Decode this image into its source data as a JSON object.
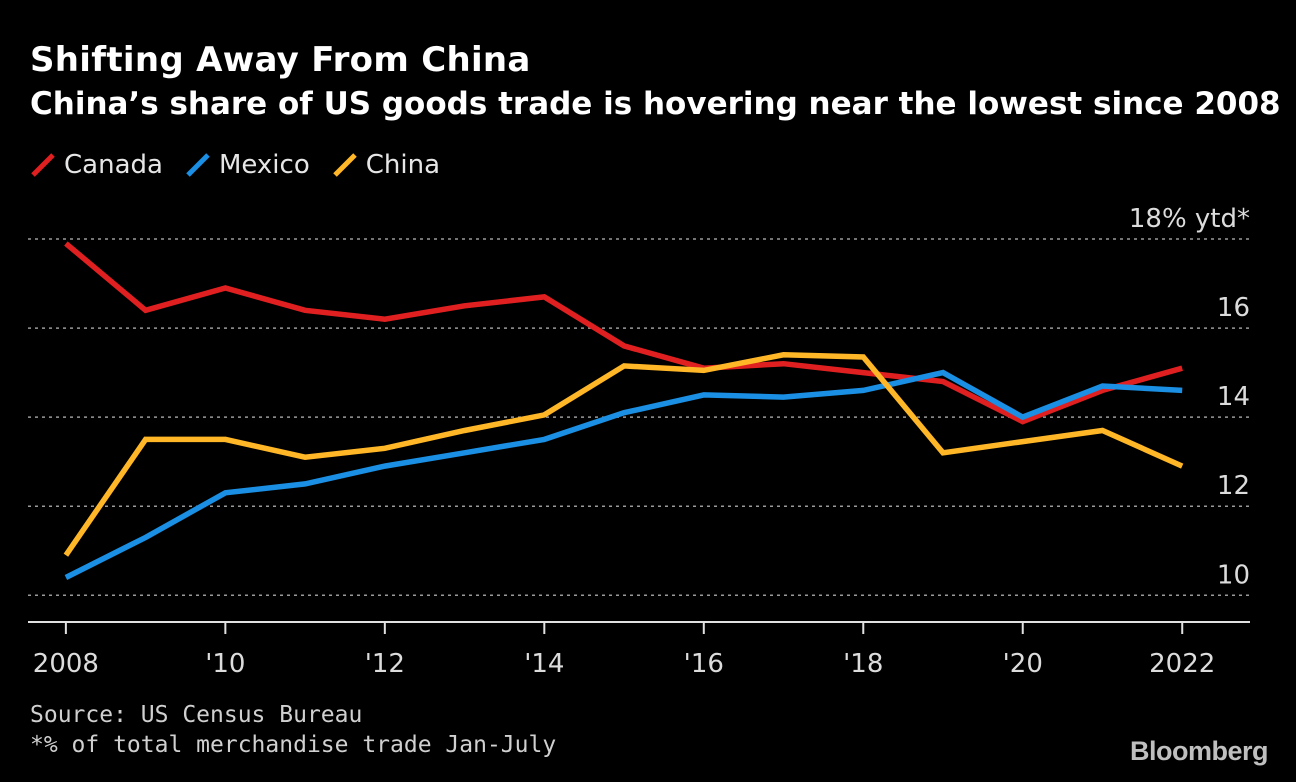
{
  "header": {
    "title": "Shifting Away From China",
    "subtitle": "China’s share of US goods trade is hovering near the lowest since 2008"
  },
  "legend": [
    {
      "label": "Canada",
      "color": "#e02020",
      "icon": "line-swatch-icon"
    },
    {
      "label": "Mexico",
      "color": "#1a8fe3",
      "icon": "line-swatch-icon"
    },
    {
      "label": "China",
      "color": "#ffb627",
      "icon": "line-swatch-icon"
    }
  ],
  "footer": {
    "source": "Source: US Census Bureau",
    "note": "*% of total merchandise trade Jan-July",
    "brand": "Bloomberg"
  },
  "chart_data": {
    "type": "line",
    "title": "Shifting Away From China",
    "subtitle": "China’s share of US goods trade is hovering near the lowest since 2008",
    "x": [
      2008,
      2009,
      2010,
      2011,
      2012,
      2013,
      2014,
      2015,
      2016,
      2017,
      2018,
      2019,
      2020,
      2021,
      2022
    ],
    "series": [
      {
        "name": "Canada",
        "color": "#e02020",
        "values": [
          17.9,
          16.4,
          16.9,
          16.4,
          16.2,
          16.5,
          16.7,
          15.6,
          15.1,
          15.2,
          15.0,
          14.8,
          13.9,
          14.6,
          15.1
        ]
      },
      {
        "name": "Mexico",
        "color": "#1a8fe3",
        "values": [
          10.4,
          11.3,
          12.3,
          12.5,
          12.9,
          13.2,
          13.5,
          14.1,
          14.5,
          14.45,
          14.6,
          15.0,
          14.0,
          14.7,
          14.6
        ]
      },
      {
        "name": "China",
        "color": "#ffb627",
        "values": [
          10.9,
          13.5,
          13.5,
          13.1,
          13.3,
          13.7,
          14.05,
          15.15,
          15.05,
          15.4,
          15.35,
          13.2,
          13.45,
          13.7,
          12.9
        ]
      }
    ],
    "ylim": [
      9.4,
      18.0
    ],
    "yticks": [
      {
        "value": 18,
        "label": "18% ytd*"
      },
      {
        "value": 16,
        "label": "16"
      },
      {
        "value": 14,
        "label": "14"
      },
      {
        "value": 12,
        "label": "12"
      },
      {
        "value": 10,
        "label": "10"
      }
    ],
    "xticks": [
      {
        "value": 2008,
        "label": "2008"
      },
      {
        "value": 2010,
        "label": "'10"
      },
      {
        "value": 2012,
        "label": "'12"
      },
      {
        "value": 2014,
        "label": "'14"
      },
      {
        "value": 2016,
        "label": "'16"
      },
      {
        "value": 2018,
        "label": "'18"
      },
      {
        "value": 2020,
        "label": "'20"
      },
      {
        "value": 2022,
        "label": "2022"
      }
    ],
    "xlim": [
      2007.55,
      2022.85
    ],
    "grid": true,
    "xlabel": "",
    "ylabel": ""
  }
}
